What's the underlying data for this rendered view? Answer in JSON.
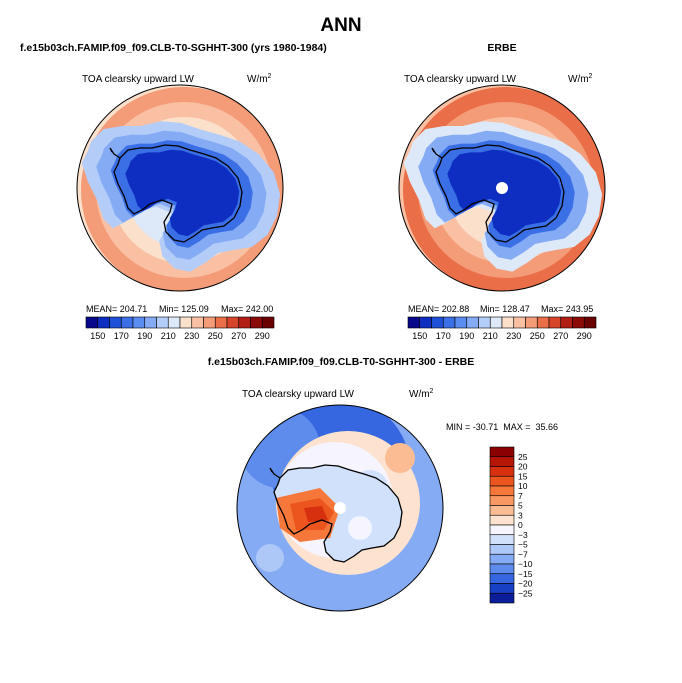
{
  "page": {
    "title": "ANN"
  },
  "chart_data": [
    {
      "type": "heatmap",
      "projection": "south-polar-stereographic",
      "panel_title": "f.e15b03ch.FAMIP.f09_f09.CLB-T0-SGHHT-300 (yrs 1980-1984)",
      "variable": "TOA clearsky upward LW",
      "units_base": "W/m",
      "units_exp": "2",
      "stats": {
        "mean": "204.71",
        "min": "125.09",
        "max": "242.00"
      },
      "stats_text": {
        "mean": "MEAN= 204.71",
        "min": "Min= 125.09",
        "max": "Max= 242.00"
      },
      "levels": [
        150,
        160,
        170,
        180,
        190,
        200,
        210,
        220,
        230,
        240,
        250,
        260,
        270,
        280,
        290
      ],
      "label_levels": [
        "150",
        "170",
        "190",
        "210",
        "230",
        "250",
        "270",
        "290"
      ],
      "rings": [
        240,
        230,
        220,
        210,
        200,
        190,
        170,
        150
      ]
    },
    {
      "type": "heatmap",
      "projection": "south-polar-stereographic",
      "panel_title": "ERBE",
      "variable": "TOA clearsky upward LW",
      "units_base": "W/m",
      "units_exp": "2",
      "stats": {
        "mean": "202.88",
        "min": "128.47",
        "max": "243.95"
      },
      "stats_text": {
        "mean": "MEAN= 202.88",
        "min": "Min= 128.47",
        "max": "Max= 243.95"
      },
      "levels": [
        150,
        160,
        170,
        180,
        190,
        200,
        210,
        220,
        230,
        240,
        250,
        260,
        270,
        280,
        290
      ],
      "label_levels": [
        "150",
        "170",
        "190",
        "210",
        "230",
        "250",
        "270",
        "290"
      ],
      "rings": [
        250,
        240,
        230,
        220,
        210,
        190,
        170,
        150
      ]
    },
    {
      "type": "heatmap",
      "projection": "south-polar-stereographic",
      "panel_title": "f.e15b03ch.FAMIP.f09_f09.CLB-T0-SGHHT-300 - ERBE",
      "variable": "TOA clearsky upward LW",
      "units_base": "W/m",
      "units_exp": "2",
      "stats_text": "MIN = -30.71  MAX =  35.66",
      "levels": [
        -25,
        -20,
        -15,
        -10,
        -7,
        -5,
        -3,
        0,
        3,
        5,
        7,
        10,
        15,
        20,
        25
      ],
      "label_levels": [
        "25",
        "20",
        "15",
        "10",
        "7",
        "5",
        "3",
        "0",
        "−3",
        "−5",
        "−7",
        "−10",
        "−15",
        "−20",
        "−25"
      ]
    }
  ],
  "colors": {
    "abs_scale": [
      "#08088a",
      "#0d2ec0",
      "#1f50d8",
      "#3b6fe6",
      "#5b8cf0",
      "#85abf5",
      "#b3cdf8",
      "#dde9f8",
      "#fbe0cc",
      "#f9c0a3",
      "#f49b78",
      "#ea6f48",
      "#d6452a",
      "#b31e14",
      "#8b0a05",
      "#6b0000"
    ],
    "diff_scale": [
      "#8b0000",
      "#b51606",
      "#d6300e",
      "#ec561e",
      "#f5773a",
      "#f99862",
      "#fbbc94",
      "#fde2cf",
      "#f5f4ff",
      "#d2e1fb",
      "#adc8f7",
      "#85abf4",
      "#5d8ced",
      "#3667e0",
      "#1840c4",
      "#0a1e9a"
    ],
    "land_outline": "#000000"
  }
}
